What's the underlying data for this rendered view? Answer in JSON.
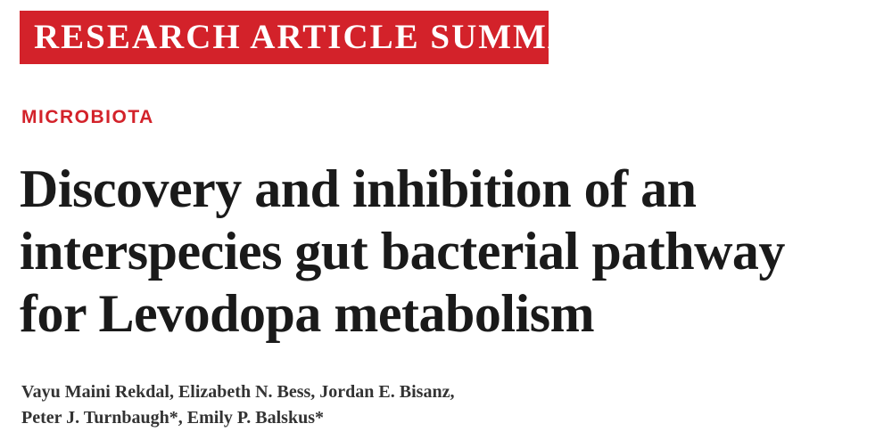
{
  "header": {
    "banner": "RESEARCH ARTICLE SUMMARY",
    "section": "MICROBIOTA"
  },
  "article": {
    "title_lines": [
      "Discovery and inhibition of an",
      "interspecies gut bacterial pathway",
      "for Levodopa metabolism"
    ],
    "author_lines": [
      "Vayu Maini Rekdal, Elizabeth N. Bess, Jordan E. Bisanz,",
      "Peter J. Turnbaugh*, Emily P. Balskus*"
    ]
  }
}
